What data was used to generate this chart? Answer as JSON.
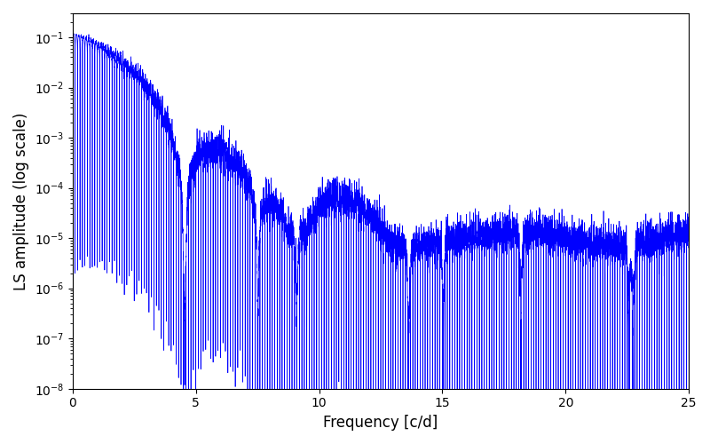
{
  "title": "",
  "xlabel": "Frequency [c/d]",
  "ylabel": "LS amplitude (log scale)",
  "xlim": [
    0,
    25
  ],
  "ylim": [
    1e-08,
    0.3
  ],
  "line_color": "#0000ff",
  "background_color": "#ffffff",
  "figsize": [
    8.0,
    5.0
  ],
  "dpi": 100,
  "freq_max": 25.0,
  "seed": 42
}
